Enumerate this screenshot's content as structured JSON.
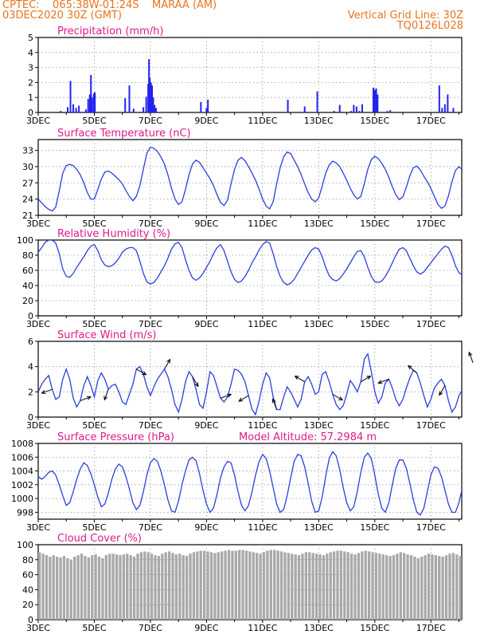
{
  "header": {
    "line1_left": "CPTEC:    065:38W-01:24S    MARAA (AM)",
    "line2_left": "03DEC2020 30Z (GMT)",
    "line1_right": "Vertical Grid Line: 30Z",
    "line2_right": "TQ0126L028"
  },
  "colors": {
    "header": "#e8741c",
    "title": "#e0198a",
    "line": "#2b3fe0",
    "bar": "#2222ee",
    "cloud": "#a9a9a9",
    "grid": "#999999",
    "arrow": "#000000"
  },
  "x_axis": {
    "tick_labels": [
      "3DEC",
      "5DEC",
      "7DEC",
      "9DEC",
      "11DEC",
      "13DEC",
      "15DEC",
      "17DEC"
    ],
    "tick_days": [
      0,
      2,
      4,
      6,
      8,
      10,
      12,
      14
    ],
    "range_days": [
      0,
      15.1
    ]
  },
  "chart_data": [
    {
      "type": "bar",
      "title": "Precipitation (mm/h)",
      "ylim": [
        0,
        5
      ],
      "yticks": [
        0,
        1,
        2,
        3,
        4,
        5
      ],
      "points": [
        [
          0.8,
          0.1
        ],
        [
          1.05,
          0.35
        ],
        [
          1.15,
          2.1
        ],
        [
          1.25,
          0.55
        ],
        [
          1.35,
          0.3
        ],
        [
          1.45,
          0.45
        ],
        [
          1.7,
          0.2
        ],
        [
          1.78,
          0.9
        ],
        [
          1.84,
          1.2
        ],
        [
          1.88,
          2.5
        ],
        [
          1.92,
          1.0
        ],
        [
          1.98,
          1.25
        ],
        [
          2.02,
          1.35
        ],
        [
          3.1,
          0.95
        ],
        [
          3.25,
          1.8
        ],
        [
          3.4,
          0.25
        ],
        [
          3.75,
          0.35
        ],
        [
          3.85,
          1.05
        ],
        [
          3.92,
          1.9
        ],
        [
          3.95,
          3.55
        ],
        [
          3.98,
          2.3
        ],
        [
          4.02,
          2.0
        ],
        [
          4.06,
          1.8
        ],
        [
          4.1,
          1.0
        ],
        [
          4.15,
          0.5
        ],
        [
          4.2,
          0.3
        ],
        [
          5.8,
          0.7
        ],
        [
          6.0,
          0.3
        ],
        [
          6.05,
          0.85
        ],
        [
          8.9,
          0.85
        ],
        [
          9.5,
          0.4
        ],
        [
          9.95,
          1.4
        ],
        [
          10.75,
          0.5
        ],
        [
          10.55,
          0.1
        ],
        [
          11.15,
          0.1
        ],
        [
          11.25,
          0.5
        ],
        [
          11.35,
          0.4
        ],
        [
          11.45,
          0.1
        ],
        [
          11.55,
          0.55
        ],
        [
          11.95,
          1.65
        ],
        [
          12.0,
          1.5
        ],
        [
          12.05,
          1.6
        ],
        [
          12.1,
          1.2
        ],
        [
          12.45,
          0.1
        ],
        [
          12.55,
          0.15
        ],
        [
          14.3,
          1.8
        ],
        [
          14.4,
          0.3
        ],
        [
          14.5,
          0.55
        ],
        [
          14.6,
          1.2
        ],
        [
          14.8,
          0.3
        ]
      ]
    },
    {
      "type": "line",
      "title": "Surface Temperature (nC)",
      "ylim": [
        21,
        35
      ],
      "yticks": [
        21,
        24,
        27,
        30,
        33
      ],
      "x_step_days": 0.125,
      "values": [
        24.0,
        23.3,
        22.6,
        22.1,
        21.8,
        22.5,
        25.5,
        28.8,
        30.2,
        30.4,
        30.2,
        29.5,
        28.5,
        27.0,
        25.2,
        24.0,
        24.0,
        25.8,
        27.7,
        29.0,
        29.2,
        28.8,
        28.2,
        27.6,
        26.8,
        25.6,
        24.5,
        23.7,
        24.5,
        26.5,
        29.5,
        32.5,
        33.6,
        33.4,
        32.8,
        31.8,
        30.5,
        28.5,
        26.0,
        24.0,
        23.0,
        23.5,
        25.8,
        28.5,
        30.5,
        31.2,
        30.8,
        29.8,
        28.8,
        27.8,
        26.5,
        24.8,
        23.4,
        22.8,
        23.8,
        26.8,
        29.5,
        31.2,
        31.7,
        31.1,
        30.0,
        28.8,
        27.5,
        25.8,
        24.0,
        22.7,
        22.2,
        23.5,
        26.8,
        29.8,
        31.8,
        32.7,
        32.4,
        31.2,
        30.0,
        28.5,
        26.8,
        25.2,
        24.0,
        23.5,
        24.2,
        26.4,
        28.8,
        30.3,
        31.0,
        30.7,
        30.0,
        28.8,
        27.5,
        26.0,
        24.8,
        24.0,
        24.5,
        26.8,
        29.5,
        31.3,
        31.9,
        31.5,
        30.6,
        29.5,
        28.0,
        26.3,
        24.8,
        23.9,
        24.4,
        26.2,
        28.3,
        29.8,
        30.1,
        29.4,
        28.2,
        27.2,
        26.0,
        24.5,
        23.0,
        22.3,
        22.7,
        24.6,
        27.2,
        29.3,
        30.0,
        29.4,
        28.0,
        26.6,
        25.4,
        24.6,
        24.2,
        24.6,
        26.3,
        28.5,
        30.1,
        30.5,
        29.8,
        28.6,
        27.2,
        25.8,
        24.4,
        23.7,
        24.0,
        25.8,
        28.5,
        31.3,
        32.5,
        32.2,
        31.0,
        29.5,
        28.0,
        26.3,
        24.5,
        23.6,
        24.0,
        25.6,
        27.5,
        29.0,
        29.6,
        29.3,
        28.6,
        27.6,
        26.2,
        24.6,
        23.4,
        22.6,
        23.3,
        25.6,
        28.5,
        30.7,
        31.8,
        31.2,
        30.2,
        29.0,
        27.5,
        25.5,
        23.8,
        22.6,
        23.5,
        26.5,
        30.0,
        32.5,
        33.2,
        32.5,
        31.0,
        29.5,
        28.0,
        26.3,
        24.8,
        24.0,
        24.5,
        26.5,
        28.6,
        29.8,
        30.0,
        29.7,
        29.5,
        29.0,
        28.5
      ]
    },
    {
      "type": "line",
      "title": "Relative Humidity (%)",
      "ylim": [
        0,
        100
      ],
      "yticks": [
        0,
        20,
        40,
        60,
        80,
        100
      ],
      "x_step_days": 0.125,
      "values": [
        84,
        90,
        97,
        100,
        100,
        96,
        82,
        62,
        52,
        51,
        56,
        64,
        71,
        78,
        86,
        92,
        94,
        86,
        74,
        67,
        65,
        66,
        70,
        76,
        84,
        88,
        90,
        90,
        86,
        72,
        56,
        45,
        42,
        44,
        50,
        58,
        66,
        76,
        88,
        95,
        97,
        90,
        74,
        60,
        50,
        47,
        50,
        56,
        64,
        72,
        82,
        90,
        94,
        86,
        72,
        58,
        48,
        44,
        46,
        52,
        60,
        70,
        78,
        87,
        94,
        98,
        96,
        82,
        65,
        52,
        44,
        41,
        43,
        48,
        56,
        64,
        72,
        80,
        87,
        90,
        88,
        78,
        64,
        53,
        48,
        46,
        49,
        55,
        62,
        70,
        78,
        85,
        86,
        78,
        64,
        52,
        45,
        44,
        46,
        52,
        60,
        70,
        80,
        88,
        90,
        86,
        76,
        66,
        58,
        55,
        58,
        64,
        70,
        76,
        82,
        88,
        92,
        90,
        80,
        66,
        57,
        54,
        56,
        62,
        68,
        72,
        76,
        78,
        80,
        78,
        70,
        60,
        52,
        50,
        52,
        58,
        64,
        70,
        78,
        86,
        92,
        90,
        80,
        64,
        50,
        42,
        40,
        44,
        50,
        58,
        66,
        74,
        82,
        88,
        90,
        86,
        78,
        70,
        64,
        62,
        64,
        68,
        74,
        80,
        86,
        92,
        96,
        92,
        80,
        66,
        56,
        50,
        52,
        58,
        64,
        70,
        80,
        88,
        96,
        100,
        98,
        84,
        66,
        52,
        43,
        42,
        45,
        52,
        60,
        68,
        76,
        82,
        88,
        90,
        86,
        78,
        70,
        64,
        62
      ]
    },
    {
      "type": "line",
      "title": "Surface Wind (m/s)",
      "ylim": [
        0,
        6
      ],
      "yticks": [
        0,
        2,
        4,
        6
      ],
      "x_step_days": 0.125,
      "values": [
        2.0,
        2.6,
        3.0,
        3.3,
        2.2,
        1.4,
        1.6,
        3.0,
        3.8,
        3.0,
        1.5,
        0.8,
        1.3,
        2.5,
        3.2,
        2.5,
        1.6,
        2.9,
        3.5,
        3.0,
        2.2,
        2.5,
        2.6,
        2.0,
        1.2,
        1.0,
        1.8,
        2.6,
        3.8,
        4.0,
        3.4,
        2.4,
        1.7,
        2.4,
        3.0,
        3.4,
        3.8,
        3.2,
        2.2,
        1.0,
        0.4,
        1.4,
        2.8,
        3.6,
        3.2,
        2.2,
        1.0,
        0.7,
        2.0,
        3.6,
        3.3,
        2.4,
        1.5,
        1.2,
        1.6,
        2.6,
        3.8,
        3.7,
        3.4,
        2.8,
        1.7,
        0.6,
        0.2,
        1.3,
        2.6,
        3.5,
        3.1,
        1.6,
        0.6,
        0.6,
        1.6,
        2.4,
        2.0,
        1.4,
        0.8,
        1.4,
        2.8,
        3.2,
        2.6,
        1.8,
        2.0,
        3.4,
        3.6,
        2.8,
        1.8,
        1.0,
        0.6,
        0.9,
        1.8,
        2.9,
        2.5,
        2.0,
        2.8,
        4.6,
        5.0,
        3.6,
        2.0,
        1.1,
        1.6,
        2.7,
        3.0,
        2.3,
        1.4,
        0.9,
        1.4,
        2.3,
        3.1,
        3.7,
        3.5,
        2.7,
        1.7,
        0.8,
        1.4,
        2.3,
        2.7,
        3.0,
        2.5,
        1.3,
        0.4,
        0.8,
        1.7,
        2.2,
        2.5,
        3.9,
        4.3,
        3.4,
        2.7,
        1.7,
        1.4,
        2.0,
        2.6,
        2.5,
        1.9,
        1.4,
        2.0,
        2.5,
        3.5,
        4.5,
        4.7,
        3.6,
        2.7,
        1.7,
        1.6,
        2.0,
        2.0,
        1.9,
        1.6,
        1.0,
        0.6,
        1.6,
        2.6,
        3.2,
        3.5,
        3.0,
        1.9,
        1.6,
        2.3,
        3.3,
        5.0,
        4.5,
        2.6,
        1.3,
        1.5,
        2.2,
        2.8,
        3.2,
        3.6,
        4.0,
        5.4,
        4.7,
        2.8,
        1.5,
        1.0,
        1.8,
        2.7,
        2.4,
        1.8,
        1.4,
        1.2,
        0.3,
        1.2,
        2.4,
        2.6,
        2.0,
        2.2,
        2.6,
        2.1,
        1.7,
        1.0,
        1.0,
        1.5,
        2.2,
        2.8,
        3.3,
        3.6
      ]
    },
    {
      "type": "line",
      "title": "Surface Pressure (hPa)",
      "annotation": "Model Altitude: 57.2984 m",
      "ylim": [
        997,
        1008
      ],
      "yticks": [
        998,
        1000,
        1002,
        1004,
        1006,
        1008
      ],
      "x_step_days": 0.125,
      "values": [
        1003.2,
        1002.8,
        1003.2,
        1003.8,
        1004.0,
        1003.4,
        1002.0,
        1000.4,
        999.0,
        999.4,
        1001.0,
        1002.8,
        1004.3,
        1005.2,
        1004.8,
        1003.6,
        1002.0,
        1000.2,
        998.8,
        999.2,
        1000.8,
        1002.8,
        1004.3,
        1005.0,
        1004.6,
        1003.2,
        1001.4,
        999.4,
        998.4,
        999.0,
        1001.0,
        1003.4,
        1005.2,
        1005.8,
        1005.4,
        1004.0,
        1002.0,
        999.8,
        998.2,
        998.0,
        999.6,
        1002.0,
        1004.0,
        1005.6,
        1006.0,
        1005.5,
        1003.6,
        1001.2,
        999.2,
        998.0,
        998.6,
        1000.6,
        1003.0,
        1004.6,
        1005.4,
        1005.2,
        1003.4,
        1001.0,
        999.0,
        998.2,
        999.0,
        1001.0,
        1003.4,
        1005.4,
        1006.4,
        1005.8,
        1004.0,
        1001.6,
        999.2,
        998.0,
        998.4,
        1000.4,
        1003.0,
        1005.4,
        1006.4,
        1006.2,
        1004.6,
        1002.2,
        999.6,
        998.0,
        998.2,
        1000.2,
        1003.2,
        1005.8,
        1006.8,
        1006.2,
        1004.2,
        1001.6,
        999.4,
        998.2,
        998.8,
        1001.0,
        1003.8,
        1006.0,
        1006.6,
        1005.8,
        1003.4,
        1000.6,
        998.6,
        998.0,
        999.4,
        1002.0,
        1004.4,
        1005.6,
        1005.6,
        1004.4,
        1002.2,
        999.8,
        998.0,
        997.6,
        998.6,
        1001.0,
        1003.4,
        1004.6,
        1004.4,
        1003.2,
        1001.2,
        999.2,
        998.0,
        998.0,
        999.4,
        1001.6,
        1003.6,
        1004.6,
        1004.2,
        1003.0,
        1001.4,
        999.8,
        998.4,
        998.2,
        999.4,
        1001.4,
        1003.2,
        1004.2,
        1004.0,
        1002.8,
        1001.0,
        999.4,
        998.4,
        998.6,
        1000.0,
        1001.8,
        1003.4,
        1004.4,
        1004.6,
        1003.6,
        1001.6,
        999.6,
        998.4,
        998.4,
        999.8,
        1001.8,
        1003.4,
        1004.4,
        1004.4,
        1003.4,
        1001.6,
        999.6,
        998.0,
        997.6,
        998.8,
        1001.0,
        1003.2,
        1004.6,
        1004.6,
        1003.6,
        1001.4,
        999.2,
        997.4,
        997.2,
        998.6,
        1001.0,
        1003.2,
        1004.6,
        1004.6,
        1003.4,
        1001.2,
        999.0,
        997.4,
        997.6,
        999.4,
        1001.6,
        1003.4,
        1004.2,
        1003.6,
        1001.8,
        999.8,
        998.2,
        998.0
      ]
    },
    {
      "type": "area",
      "title": "Cloud Cover (%)",
      "ylim": [
        0,
        100
      ],
      "yticks": [
        0,
        20,
        40,
        60,
        80,
        100
      ],
      "x_step_days": 0.125,
      "values": [
        90,
        88,
        86,
        84,
        86,
        84,
        83,
        85,
        82,
        80,
        84,
        86,
        88,
        85,
        83,
        86,
        87,
        84,
        82,
        86,
        88,
        88,
        87,
        86,
        87,
        88,
        86,
        84,
        88,
        90,
        91,
        90,
        88,
        86,
        85,
        88,
        90,
        91,
        89,
        87,
        88,
        86,
        85,
        88,
        90,
        91,
        92,
        92,
        91,
        90,
        89,
        90,
        91,
        92,
        93,
        92,
        92,
        93,
        93,
        92,
        91,
        90,
        89,
        88,
        90,
        92,
        93,
        93,
        92,
        91,
        90,
        89,
        88,
        87,
        86,
        88,
        90,
        90,
        89,
        88,
        87,
        86,
        88,
        90,
        91,
        92,
        92,
        91,
        90,
        88,
        87,
        89,
        91,
        92,
        91,
        90,
        89,
        88,
        87,
        86,
        85,
        86,
        88,
        90,
        89,
        87,
        86,
        84,
        82,
        84,
        86,
        88,
        87,
        86,
        85,
        84,
        86,
        88,
        89,
        87,
        85,
        84,
        82,
        84,
        86,
        87,
        88,
        86,
        85,
        84,
        85,
        87,
        88,
        87,
        86,
        84,
        83,
        85,
        87,
        88,
        89,
        88,
        86,
        84,
        83,
        85,
        87,
        89,
        90,
        88,
        86,
        84,
        85,
        87,
        88,
        89,
        88,
        86,
        84,
        83,
        85,
        87,
        88,
        89,
        88,
        86,
        85,
        84,
        85,
        86,
        87,
        86,
        84,
        83,
        84,
        86,
        87,
        88,
        87,
        85,
        84,
        83,
        84,
        86,
        87,
        88,
        88,
        86,
        85,
        84,
        86,
        88,
        89,
        88,
        86
      ]
    }
  ]
}
